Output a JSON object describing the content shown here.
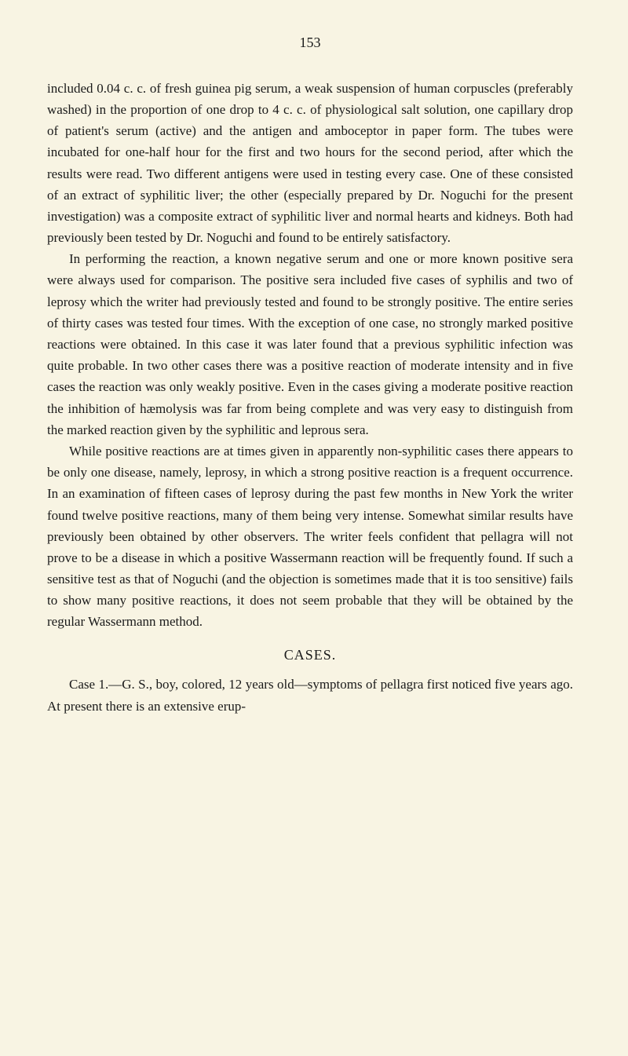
{
  "page_number": "153",
  "paragraphs": [
    {
      "indent": false,
      "text": "included 0.04 c. c. of fresh guinea pig serum, a weak suspension of human corpuscles (preferably washed) in the proportion of one drop to 4 c. c. of physiological salt solution, one capillary drop of patient's serum (active) and the antigen and amboceptor in paper form. The tubes were incubated for one-half hour for the first and two hours for the second period, after which the results were read. Two different antigens were used in testing every case. One of these consisted of an extract of syphilitic liver; the other (especially prepared by Dr. Noguchi for the present investigation) was a composite extract of syphilitic liver and normal hearts and kidneys. Both had previously been tested by Dr. Noguchi and found to be entirely satisfactory."
    },
    {
      "indent": true,
      "text": "In performing the reaction, a known negative serum and one or more known positive sera were always used for comparison. The positive sera included five cases of syphilis and two of leprosy which the writer had previously tested and found to be strongly positive. The entire series of thirty cases was tested four times. With the exception of one case, no strongly marked positive reactions were obtained. In this case it was later found that a previous syphilitic infection was quite probable. In two other cases there was a positive reaction of moderate intensity and in five cases the reaction was only weakly positive. Even in the cases giving a moderate positive reaction the inhibition of hæmolysis was far from being complete and was very easy to distinguish from the marked reaction given by the syphilitic and leprous sera."
    },
    {
      "indent": true,
      "text": "While positive reactions are at times given in apparently non-syphilitic cases there appears to be only one disease, namely, leprosy, in which a strong positive reaction is a frequent occurrence. In an examination of fifteen cases of leprosy during the past few months in New York the writer found twelve positive reactions, many of them being very intense. Somewhat similar results have previously been obtained by other observers. The writer feels confident that pellagra will not prove to be a disease in which a positive Wassermann reaction will be frequently found. If such a sensitive test as that of Noguchi (and the objection is sometimes made that it is too sensitive) fails to show many positive reactions, it does not seem probable that they will be obtained by the regular Wassermann method."
    }
  ],
  "cases_heading": "CASES.",
  "case_paragraph": {
    "indent": true,
    "text": "Case 1.—G. S., boy, colored, 12 years old—symptoms of pellagra first noticed five years ago. At present there is an extensive erup-"
  },
  "style": {
    "background_color": "#f8f4e3",
    "text_color": "#1a1a1a",
    "body_font_size": 17,
    "page_number_font_size": 18,
    "heading_font_size": 18
  }
}
